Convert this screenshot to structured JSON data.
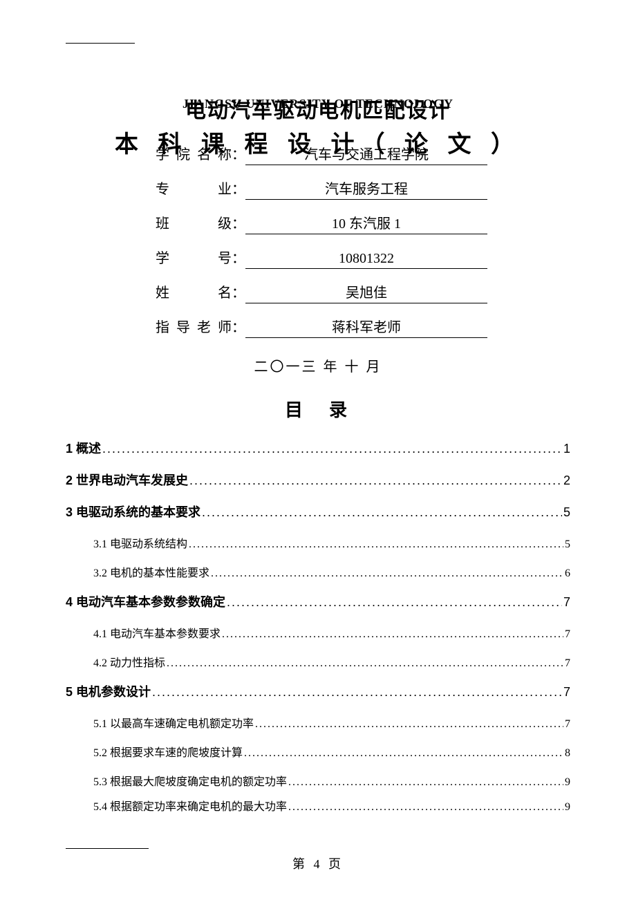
{
  "header": {
    "university_en": "JIANGSU UNIVERSITY OF TECHNOLOGY",
    "main_title": "电动汽车驱动电机匹配设计",
    "sub_title_prefix": "本 科",
    "sub_title_fields_label": "学院名称：",
    "sub_title": "本 科 课 程 设 计（ 论 文 ）"
  },
  "info": {
    "rows": [
      {
        "label": "学院名称",
        "value": "汽车与交通工程学院"
      },
      {
        "label": "专　　业",
        "value": "汽车服务工程"
      },
      {
        "label": "班　　级",
        "value": "10 东汽服 1"
      },
      {
        "label": "学　　号",
        "value": "10801322"
      },
      {
        "label": "姓　　名",
        "value": "吴旭佳"
      },
      {
        "label": "指导老师",
        "value": "蒋科军老师"
      }
    ],
    "date": "二〇一三 年 十 月"
  },
  "toc": {
    "title": "目　录",
    "entries": [
      {
        "level": 1,
        "text": "1 概述",
        "page": "1"
      },
      {
        "level": 1,
        "text": "2 世界电动汽车发展史",
        "page": "2"
      },
      {
        "level": 1,
        "text": "3 电驱动系统的基本要求",
        "page": "5"
      },
      {
        "level": 2,
        "text": "3.1 电驱动系统结构",
        "page": "5"
      },
      {
        "level": 2,
        "text": "3.2 电机的基本性能要求",
        "page": "6"
      },
      {
        "level": 1,
        "text": "4 电动汽车基本参数参数确定",
        "page": "7"
      },
      {
        "level": 2,
        "text": "4.1 电动汽车基本参数要求",
        "page": "7"
      },
      {
        "level": 2,
        "text": "4.2 动力性指标",
        "page": "7"
      },
      {
        "level": 1,
        "text": "5 电机参数设计",
        "page": "7"
      },
      {
        "level": 2,
        "text": "5.1 以最高车速确定电机额定功率",
        "page": "7"
      },
      {
        "level": 2,
        "text": "5.2 根据要求车速的爬坡度计算",
        "page": "8"
      },
      {
        "level": 2,
        "text": "5.3 根据最大爬坡度确定电机的额定功率",
        "page": "9",
        "tight": true
      },
      {
        "level": 2,
        "text": "5.4 根据额定功率来确定电机的最大功率",
        "page": "9",
        "tight": true
      }
    ]
  },
  "footer": {
    "page_text": "第 4 页"
  }
}
